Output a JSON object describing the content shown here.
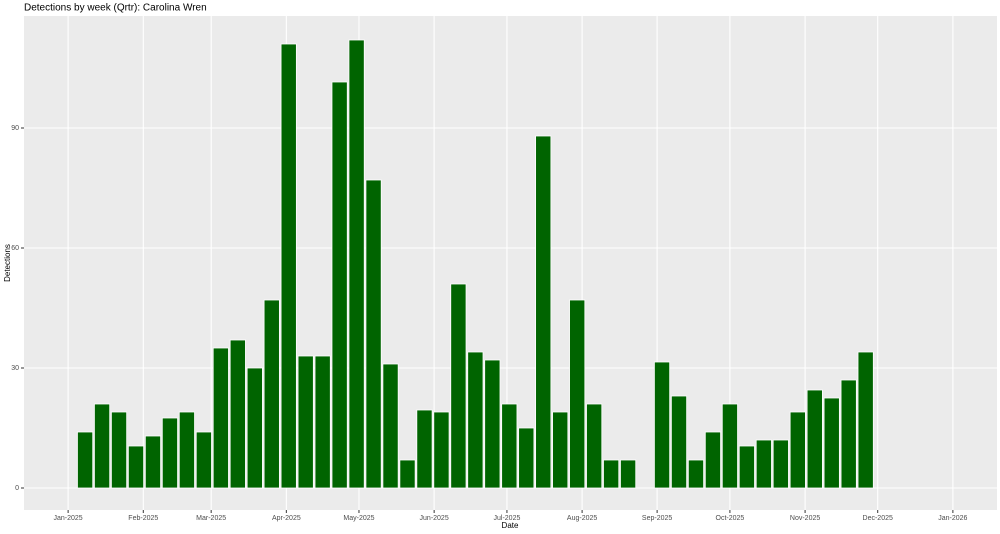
{
  "chart_data": {
    "type": "bar",
    "title": "Detections by week (Qrtr): Carolina Wren",
    "x_label": "Date",
    "y_label": "Detections",
    "categories": [
      null,
      null,
      null,
      null,
      null,
      null,
      null,
      null,
      null,
      null,
      null,
      null,
      null,
      null,
      null,
      null,
      null,
      null,
      null,
      null,
      null,
      null,
      null,
      null,
      null,
      null,
      null,
      null,
      null,
      null,
      null,
      null,
      null,
      null,
      null,
      null,
      null,
      null,
      null,
      null,
      null,
      null,
      null,
      null,
      null,
      null,
      null
    ],
    "values": [
      14,
      21,
      19,
      10.5,
      13,
      17.5,
      19,
      14,
      35,
      37,
      30,
      47,
      111,
      33,
      33,
      101.5,
      112,
      77,
      31,
      7,
      19.5,
      19,
      51,
      34,
      32,
      21,
      15,
      88,
      19,
      47,
      21,
      7,
      7,
      null,
      31.5,
      23,
      7,
      14,
      21,
      10.5,
      12,
      12,
      19,
      24.5,
      22.5,
      27,
      34
    ],
    "color": "#006400",
    "xlim": [
      -3.6,
      53.74
    ],
    "xticks": [
      {
        "value": -1,
        "label": "Jan-2025"
      },
      {
        "value": 3.43,
        "label": "Feb-2025"
      },
      {
        "value": 7.43,
        "label": "Mar-2025"
      },
      {
        "value": 11.86,
        "label": "Apr-2025"
      },
      {
        "value": 16.14,
        "label": "May-2025"
      },
      {
        "value": 20.57,
        "label": "Jun-2025"
      },
      {
        "value": 24.86,
        "label": "Jul-2025"
      },
      {
        "value": 29.29,
        "label": "Aug-2025"
      },
      {
        "value": 33.71,
        "label": "Sep-2025"
      },
      {
        "value": 38,
        "label": "Oct-2025"
      },
      {
        "value": 42.43,
        "label": "Nov-2025"
      },
      {
        "value": 46.71,
        "label": "Dec-2025"
      },
      {
        "value": 51.14,
        "label": "Jan-2026"
      }
    ],
    "ylim": [
      -5.5,
      118
    ],
    "yticks": [
      0,
      30,
      60,
      90
    ],
    "grid": true
  }
}
